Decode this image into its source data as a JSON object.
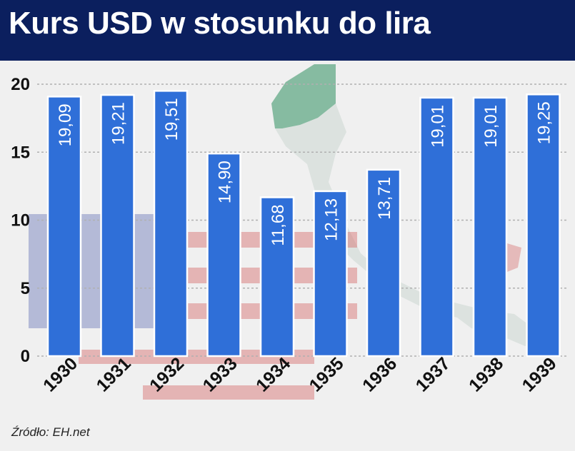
{
  "title": "Kurs USD w stosunku do lira",
  "source": "Źródło: EH.net",
  "colors": {
    "header_bg": "#0b1f5e",
    "bar_fill": "#2f6fd8",
    "bar_stroke": "#ffffff",
    "grid": "#b0b0b0"
  },
  "chart_data": {
    "type": "bar",
    "title": "Kurs USD w stosunku do lira",
    "xlabel": "",
    "ylabel": "",
    "categories": [
      "1930",
      "1931",
      "1932",
      "1933",
      "1934",
      "1935",
      "1936",
      "1937",
      "1938",
      "1939"
    ],
    "values": [
      19.09,
      19.21,
      19.51,
      14.9,
      11.68,
      12.13,
      13.71,
      19.01,
      19.01,
      19.25
    ],
    "value_labels": [
      "19,09",
      "19,21",
      "19,51",
      "14,90",
      "11,68",
      "12,13",
      "13,71",
      "19,01",
      "19,01",
      "19,25"
    ],
    "y_ticks": [
      "0",
      "5",
      "10",
      "15",
      "20"
    ],
    "ylim": [
      0,
      20
    ],
    "grid": true,
    "legend": "none"
  }
}
